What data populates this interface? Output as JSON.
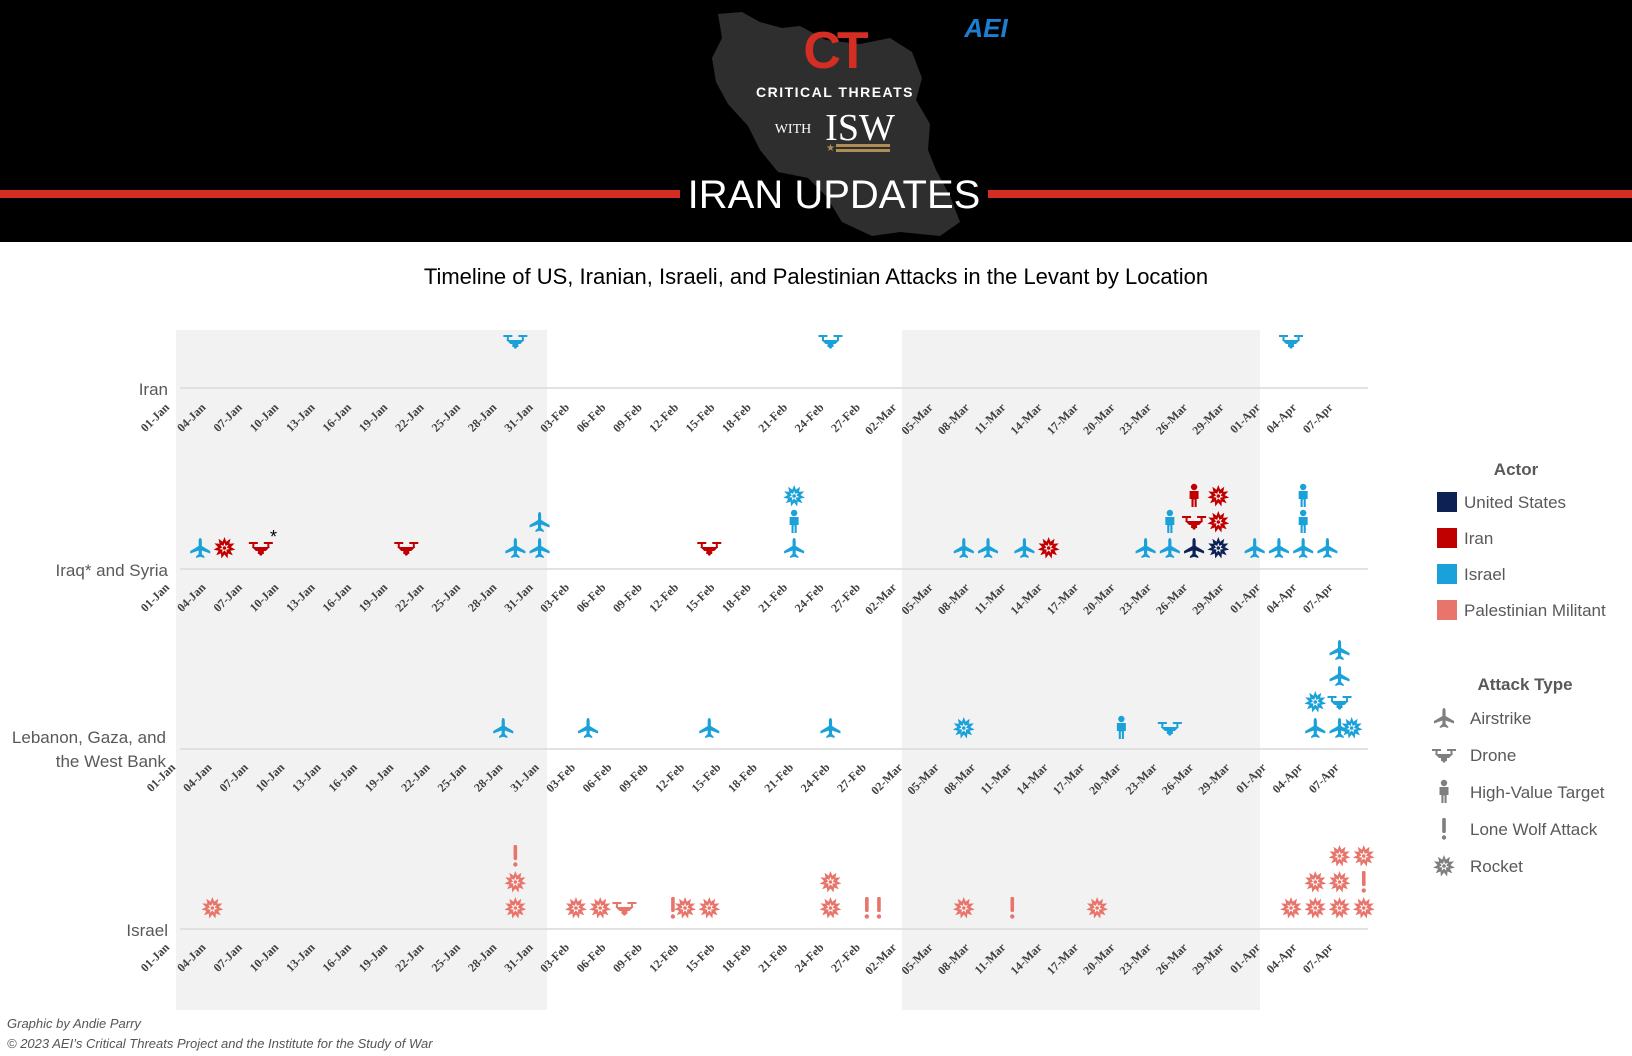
{
  "header": {
    "brand_ct": "CT",
    "brand_name": "CRITICAL THREATS",
    "brand_with": "WITH",
    "brand_isw": "ISW",
    "aei_logo": "AEI",
    "banner_title": "IRAN UPDATES"
  },
  "colors": {
    "united_states": "#0d2155",
    "iran": "#c00000",
    "israel": "#1ba1d9",
    "palestinian_militant": "#e8756b",
    "header_bg": "#000000",
    "banner_red": "#d42e24",
    "shade": "#f2f2f2"
  },
  "legend": {
    "actor_title": "Actor",
    "actors": [
      {
        "label": "United States",
        "color": "#0d2155"
      },
      {
        "label": "Iran",
        "color": "#c00000"
      },
      {
        "label": "Israel",
        "color": "#1ba1d9"
      },
      {
        "label": "Palestinian Militant",
        "color": "#e8756b"
      }
    ],
    "attack_title": "Attack Type",
    "attack_types": [
      {
        "label": "Airstrike",
        "icon": "airstrike"
      },
      {
        "label": "Drone",
        "icon": "drone"
      },
      {
        "label": "High-Value Target",
        "icon": "person"
      },
      {
        "label": "Lone Wolf Attack",
        "icon": "exclaim"
      },
      {
        "label": "Rocket",
        "icon": "rocket"
      }
    ]
  },
  "footer": {
    "credit": "Graphic by Andie Parry",
    "copyright": "© 2023 AEI’s Critical Threats Project and the Institute for the Study of War"
  },
  "chart_data": {
    "type": "scatter",
    "title": "Timeline of US, Iranian, Israeli, and Palestinian Attacks in the Levant by Location",
    "x_axis": {
      "start": "01-Jan",
      "end": "07-Apr",
      "tick_labels": [
        "01-Jan",
        "04-Jan",
        "07-Jan",
        "10-Jan",
        "13-Jan",
        "16-Jan",
        "19-Jan",
        "22-Jan",
        "25-Jan",
        "28-Jan",
        "31-Jan",
        "03-Feb",
        "06-Feb",
        "09-Feb",
        "12-Feb",
        "15-Feb",
        "18-Feb",
        "21-Feb",
        "24-Feb",
        "27-Feb",
        "02-Mar",
        "05-Mar",
        "08-Mar",
        "11-Mar",
        "14-Mar",
        "17-Mar",
        "20-Mar",
        "23-Mar",
        "26-Mar",
        "29-Mar",
        "01-Apr",
        "04-Apr",
        "07-Apr"
      ]
    },
    "shaded_months": [
      "Jan",
      "Mar"
    ],
    "rows": [
      {
        "name": "Iran",
        "events": [
          {
            "date": "29-Jan",
            "actor": "israel",
            "type": "drone",
            "stack": 1
          },
          {
            "date": "24-Feb",
            "actor": "israel",
            "type": "drone",
            "stack": 1
          },
          {
            "date": "03-Apr",
            "actor": "israel",
            "type": "drone",
            "stack": 1
          }
        ]
      },
      {
        "name": "Iraq* and Syria",
        "note": "*",
        "events": [
          {
            "date": "03-Jan",
            "actor": "israel",
            "type": "airstrike",
            "stack": 0
          },
          {
            "date": "05-Jan",
            "actor": "iran",
            "type": "rocket",
            "stack": 0
          },
          {
            "date": "08-Jan",
            "actor": "iran",
            "type": "drone",
            "stack": 0
          },
          {
            "date": "20-Jan",
            "actor": "iran",
            "type": "drone",
            "stack": 0
          },
          {
            "date": "29-Jan",
            "actor": "israel",
            "type": "airstrike",
            "stack": 0
          },
          {
            "date": "31-Jan",
            "actor": "israel",
            "type": "airstrike",
            "stack": 0
          },
          {
            "date": "31-Jan",
            "actor": "israel",
            "type": "airstrike",
            "stack": 1
          },
          {
            "date": "14-Feb",
            "actor": "iran",
            "type": "drone",
            "stack": 0
          },
          {
            "date": "21-Feb",
            "actor": "israel",
            "type": "airstrike",
            "stack": 0
          },
          {
            "date": "21-Feb",
            "actor": "israel",
            "type": "person",
            "stack": 1
          },
          {
            "date": "21-Feb",
            "actor": "israel",
            "type": "rocket",
            "stack": 2
          },
          {
            "date": "07-Mar",
            "actor": "israel",
            "type": "airstrike",
            "stack": 0
          },
          {
            "date": "09-Mar",
            "actor": "israel",
            "type": "airstrike",
            "stack": 0
          },
          {
            "date": "12-Mar",
            "actor": "israel",
            "type": "airstrike",
            "stack": 0
          },
          {
            "date": "14-Mar",
            "actor": "iran",
            "type": "rocket",
            "stack": 0
          },
          {
            "date": "22-Mar",
            "actor": "israel",
            "type": "airstrike",
            "stack": 0
          },
          {
            "date": "24-Mar",
            "actor": "israel",
            "type": "airstrike",
            "stack": 0
          },
          {
            "date": "24-Mar",
            "actor": "israel",
            "type": "person",
            "stack": 1
          },
          {
            "date": "26-Mar",
            "actor": "united_states",
            "type": "airstrike",
            "stack": 0
          },
          {
            "date": "26-Mar",
            "actor": "iran",
            "type": "drone",
            "stack": 1
          },
          {
            "date": "26-Mar",
            "actor": "iran",
            "type": "person",
            "stack": 2
          },
          {
            "date": "28-Mar",
            "actor": "united_states",
            "type": "rocket",
            "stack": 0
          },
          {
            "date": "28-Mar",
            "actor": "iran",
            "type": "rocket",
            "stack": 1
          },
          {
            "date": "28-Mar",
            "actor": "iran",
            "type": "rocket",
            "stack": 2
          },
          {
            "date": "31-Mar",
            "actor": "israel",
            "type": "airstrike",
            "stack": 0
          },
          {
            "date": "02-Apr",
            "actor": "israel",
            "type": "airstrike",
            "stack": 0
          },
          {
            "date": "04-Apr",
            "actor": "israel",
            "type": "airstrike",
            "stack": 0
          },
          {
            "date": "04-Apr",
            "actor": "israel",
            "type": "person",
            "stack": 1
          },
          {
            "date": "04-Apr",
            "actor": "israel",
            "type": "person",
            "stack": 2
          },
          {
            "date": "06-Apr",
            "actor": "israel",
            "type": "airstrike",
            "stack": 0
          }
        ]
      },
      {
        "name": "Lebanon, Gaza, and the West Bank",
        "events": [
          {
            "date": "28-Jan",
            "actor": "israel",
            "type": "airstrike",
            "stack": 0
          },
          {
            "date": "04-Feb",
            "actor": "israel",
            "type": "airstrike",
            "stack": 0
          },
          {
            "date": "14-Feb",
            "actor": "israel",
            "type": "airstrike",
            "stack": 0
          },
          {
            "date": "24-Feb",
            "actor": "israel",
            "type": "airstrike",
            "stack": 0
          },
          {
            "date": "07-Mar",
            "actor": "israel",
            "type": "rocket",
            "stack": 0
          },
          {
            "date": "20-Mar",
            "actor": "israel",
            "type": "person",
            "stack": 0
          },
          {
            "date": "24-Mar",
            "actor": "israel",
            "type": "drone",
            "stack": 0
          },
          {
            "date": "05-Apr",
            "actor": "israel",
            "type": "airstrike",
            "stack": 0
          },
          {
            "date": "05-Apr",
            "actor": "israel",
            "type": "rocket",
            "stack": 1
          },
          {
            "date": "07-Apr",
            "actor": "israel",
            "type": "airstrike",
            "stack": 0
          },
          {
            "date": "07-Apr",
            "actor": "israel",
            "type": "drone",
            "stack": 1
          },
          {
            "date": "07-Apr",
            "actor": "israel",
            "type": "airstrike",
            "stack": 2
          },
          {
            "date": "07-Apr",
            "actor": "israel",
            "type": "airstrike",
            "stack": 3
          },
          {
            "date": "08-Apr",
            "actor": "israel",
            "type": "rocket",
            "stack": 0
          }
        ]
      },
      {
        "name": "Israel",
        "events": [
          {
            "date": "04-Jan",
            "actor": "palestinian_militant",
            "type": "rocket",
            "stack": 0
          },
          {
            "date": "29-Jan",
            "actor": "palestinian_militant",
            "type": "rocket",
            "stack": 0
          },
          {
            "date": "29-Jan",
            "actor": "palestinian_militant",
            "type": "rocket",
            "stack": 1
          },
          {
            "date": "29-Jan",
            "actor": "palestinian_militant",
            "type": "exclaim",
            "stack": 2
          },
          {
            "date": "03-Feb",
            "actor": "palestinian_militant",
            "type": "rocket",
            "stack": 0
          },
          {
            "date": "05-Feb",
            "actor": "palestinian_militant",
            "type": "rocket",
            "stack": 0
          },
          {
            "date": "07-Feb",
            "actor": "palestinian_militant",
            "type": "drone",
            "stack": 0
          },
          {
            "date": "11-Feb",
            "actor": "palestinian_militant",
            "type": "exclaim",
            "stack": 0
          },
          {
            "date": "12-Feb",
            "actor": "palestinian_militant",
            "type": "rocket",
            "stack": 0
          },
          {
            "date": "14-Feb",
            "actor": "palestinian_militant",
            "type": "rocket",
            "stack": 0
          },
          {
            "date": "24-Feb",
            "actor": "palestinian_militant",
            "type": "rocket",
            "stack": 0
          },
          {
            "date": "24-Feb",
            "actor": "palestinian_militant",
            "type": "rocket",
            "stack": 1
          },
          {
            "date": "27-Feb",
            "actor": "palestinian_militant",
            "type": "exclaim",
            "stack": 0
          },
          {
            "date": "28-Feb",
            "actor": "palestinian_militant",
            "type": "exclaim",
            "stack": 0
          },
          {
            "date": "07-Mar",
            "actor": "palestinian_militant",
            "type": "rocket",
            "stack": 0
          },
          {
            "date": "11-Mar",
            "actor": "palestinian_militant",
            "type": "exclaim",
            "stack": 0
          },
          {
            "date": "18-Mar",
            "actor": "palestinian_militant",
            "type": "rocket",
            "stack": 0
          },
          {
            "date": "03-Apr",
            "actor": "palestinian_militant",
            "type": "rocket",
            "stack": 0
          },
          {
            "date": "05-Apr",
            "actor": "palestinian_militant",
            "type": "rocket",
            "stack": 0
          },
          {
            "date": "05-Apr",
            "actor": "palestinian_militant",
            "type": "rocket",
            "stack": 1
          },
          {
            "date": "07-Apr",
            "actor": "palestinian_militant",
            "type": "rocket",
            "stack": 0
          },
          {
            "date": "07-Apr",
            "actor": "palestinian_militant",
            "type": "rocket",
            "stack": 1
          },
          {
            "date": "07-Apr",
            "actor": "palestinian_militant",
            "type": "rocket",
            "stack": 2
          },
          {
            "date": "09-Apr",
            "actor": "palestinian_militant",
            "type": "rocket",
            "stack": 0
          },
          {
            "date": "09-Apr",
            "actor": "palestinian_militant",
            "type": "exclaim",
            "stack": 1
          },
          {
            "date": "09-Apr",
            "actor": "palestinian_militant",
            "type": "rocket",
            "stack": 2
          }
        ]
      }
    ]
  }
}
